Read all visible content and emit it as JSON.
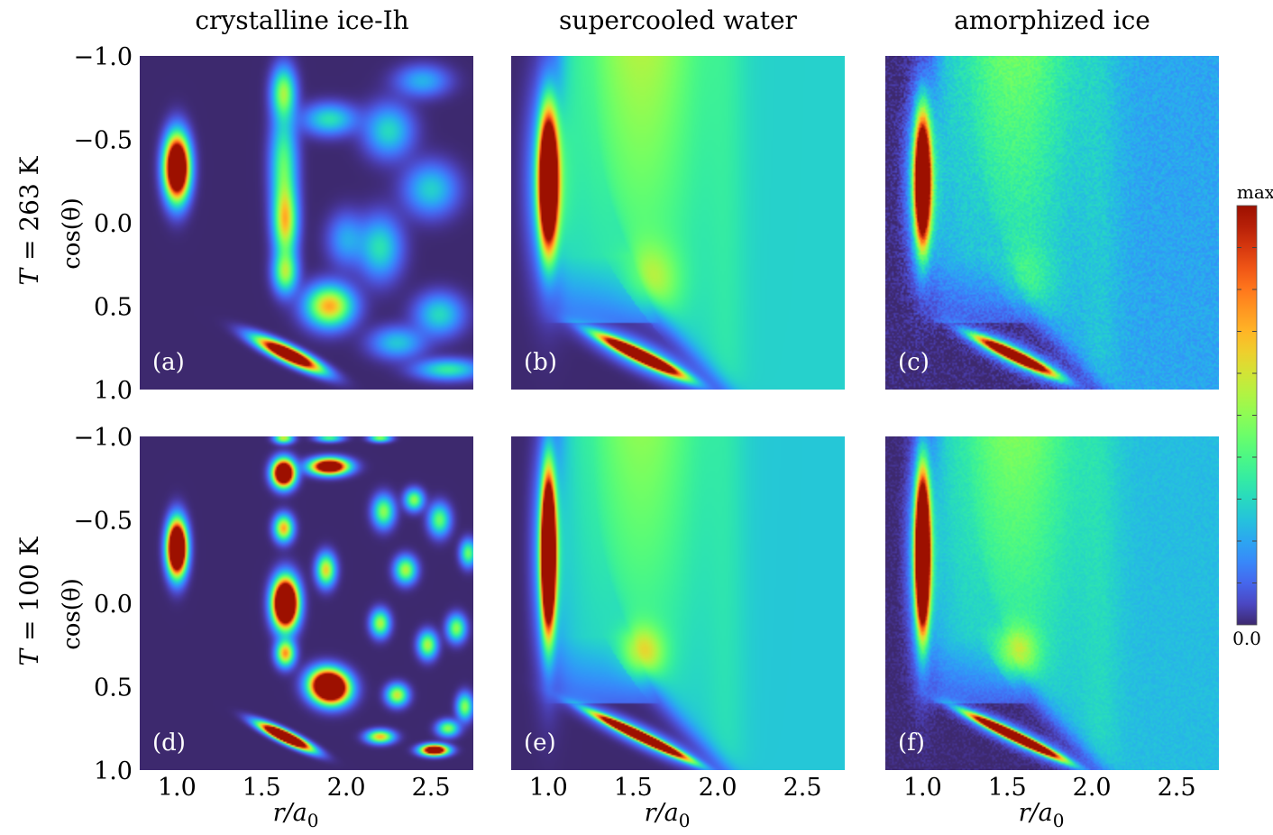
{
  "chart_data": {
    "type": "heatmap",
    "columns": [
      "crystalline ice-Ih",
      "supercooled water",
      "amorphized ice"
    ],
    "rows": [
      {
        "label_var": "T",
        "label_rest": " = 263 K"
      },
      {
        "label_var": "T",
        "label_rest": " = 100 K"
      }
    ],
    "ylabel": "cos(θ)",
    "xlabel_var": "r/a",
    "xlabel_sub": "0",
    "xlim": [
      0.78,
      2.75
    ],
    "ylim": [
      -1.0,
      1.0
    ],
    "xticks": [
      1.0,
      1.5,
      2.0,
      2.5
    ],
    "xtick_labels": [
      "1.0",
      "1.5",
      "2.0",
      "2.5"
    ],
    "yticks": [
      -1.0,
      -0.5,
      0.0,
      0.5,
      1.0
    ],
    "ytick_labels": [
      "−1.0",
      "−0.5",
      "0.0",
      "0.5",
      "1.0"
    ],
    "colorbar": {
      "max_label": "max",
      "min_label": "0.0",
      "colormap": "turbo"
    },
    "background_color": "#30123b",
    "panels": [
      {
        "label": "(a)",
        "row": 0,
        "col": 0,
        "kind": "crystal",
        "temperature": 263,
        "blobs": [
          {
            "r": 1.0,
            "c": -0.33,
            "sr": 0.045,
            "sc": 0.12,
            "rot": 0,
            "amp": 1.9
          },
          {
            "r": 1.66,
            "c": 0.79,
            "sr": 0.13,
            "sc": 0.028,
            "rot": 0.49,
            "amp": 1.7
          },
          {
            "r": 1.63,
            "c": -0.78,
            "sr": 0.045,
            "sc": 0.1,
            "rot": 0,
            "amp": 0.5
          },
          {
            "r": 1.64,
            "c": 0.0,
            "sr": 0.045,
            "sc": 0.14,
            "rot": 0,
            "amp": 0.62
          },
          {
            "r": 1.63,
            "c": -0.35,
            "sr": 0.05,
            "sc": 0.2,
            "rot": 0,
            "amp": 0.42
          },
          {
            "r": 1.64,
            "c": 0.3,
            "sr": 0.045,
            "sc": 0.08,
            "rot": 0,
            "amp": 0.5
          },
          {
            "r": 1.9,
            "c": 0.5,
            "sr": 0.09,
            "sc": 0.08,
            "rot": 0,
            "amp": 0.72
          },
          {
            "r": 1.9,
            "c": -0.62,
            "sr": 0.1,
            "sc": 0.06,
            "rot": 0,
            "amp": 0.32
          },
          {
            "r": 2.25,
            "c": -0.55,
            "sr": 0.09,
            "sc": 0.1,
            "rot": 0,
            "amp": 0.3
          },
          {
            "r": 2.2,
            "c": 0.15,
            "sr": 0.08,
            "sc": 0.12,
            "rot": 0,
            "amp": 0.32
          },
          {
            "r": 2.5,
            "c": -0.2,
            "sr": 0.1,
            "sc": 0.1,
            "rot": 0,
            "amp": 0.28
          },
          {
            "r": 2.55,
            "c": 0.55,
            "sr": 0.09,
            "sc": 0.08,
            "rot": 0,
            "amp": 0.3
          },
          {
            "r": 2.3,
            "c": 0.72,
            "sr": 0.1,
            "sc": 0.06,
            "rot": 0,
            "amp": 0.26
          },
          {
            "r": 2.6,
            "c": 0.88,
            "sr": 0.12,
            "sc": 0.04,
            "rot": 0,
            "amp": 0.35
          },
          {
            "r": 2.45,
            "c": -0.85,
            "sr": 0.1,
            "sc": 0.06,
            "rot": 0,
            "amp": 0.22
          },
          {
            "r": 2.0,
            "c": 0.1,
            "sr": 0.07,
            "sc": 0.1,
            "rot": 0,
            "amp": 0.2
          }
        ]
      },
      {
        "label": "(b)",
        "row": 0,
        "col": 1,
        "kind": "liquid",
        "temperature": 263,
        "peak1": {
          "r": 1.0,
          "c": -0.25,
          "sr": 0.035,
          "sc": 0.25,
          "amp": 2.0
        },
        "peak2": {
          "r": 1.55,
          "c": 0.8,
          "sr": 0.17,
          "sc": 0.022,
          "rot": 0.49,
          "amp": 1.8
        },
        "bands": [
          0.28,
          0.55
        ],
        "broad": [
          {
            "r": 1.6,
            "c": 0.35,
            "sr": 0.12,
            "sc": 0.15,
            "amp": 0.22
          }
        ]
      },
      {
        "label": "(c)",
        "row": 0,
        "col": 2,
        "kind": "liquid",
        "temperature": 263,
        "peak1": {
          "r": 1.0,
          "c": -0.25,
          "sr": 0.03,
          "sc": 0.24,
          "amp": 1.75
        },
        "peak2": {
          "r": 1.55,
          "c": 0.8,
          "sr": 0.16,
          "sc": 0.02,
          "rot": 0.49,
          "amp": 1.6
        },
        "bands": [
          0.2,
          0.46
        ],
        "broad": [
          {
            "r": 1.6,
            "c": 0.35,
            "sr": 0.12,
            "sc": 0.15,
            "amp": 0.12
          }
        ],
        "noise": 0.035
      },
      {
        "label": "(d)",
        "row": 1,
        "col": 0,
        "kind": "crystal",
        "temperature": 100,
        "blobs": [
          {
            "r": 1.0,
            "c": -0.33,
            "sr": 0.035,
            "sc": 0.1,
            "rot": 0,
            "amp": 2.2
          },
          {
            "r": 1.64,
            "c": 0.8,
            "sr": 0.1,
            "sc": 0.02,
            "rot": 0.49,
            "amp": 2.3
          },
          {
            "r": 1.63,
            "c": -0.78,
            "sr": 0.04,
            "sc": 0.05,
            "rot": 0,
            "amp": 1.9
          },
          {
            "r": 1.63,
            "c": -0.45,
            "sr": 0.035,
            "sc": 0.05,
            "rot": 0,
            "amp": 0.72
          },
          {
            "r": 1.64,
            "c": 0.0,
            "sr": 0.045,
            "sc": 0.09,
            "rot": 0,
            "amp": 2.3
          },
          {
            "r": 1.64,
            "c": 0.3,
            "sr": 0.035,
            "sc": 0.05,
            "rot": 0,
            "amp": 0.75
          },
          {
            "r": 1.9,
            "c": 0.5,
            "sr": 0.07,
            "sc": 0.06,
            "rot": 0.3,
            "amp": 2.2
          },
          {
            "r": 1.9,
            "c": -0.82,
            "sr": 0.07,
            "sc": 0.03,
            "rot": 0,
            "amp": 1.6
          },
          {
            "r": 1.88,
            "c": -0.2,
            "sr": 0.035,
            "sc": 0.06,
            "rot": 0,
            "amp": 0.65
          },
          {
            "r": 1.63,
            "c": -0.99,
            "sr": 0.035,
            "sc": 0.02,
            "rot": 0,
            "amp": 0.6
          },
          {
            "r": 1.9,
            "c": -0.99,
            "sr": 0.05,
            "sc": 0.015,
            "rot": 0,
            "amp": 0.4
          },
          {
            "r": 2.22,
            "c": -0.55,
            "sr": 0.04,
            "sc": 0.06,
            "rot": 0,
            "amp": 0.5
          },
          {
            "r": 2.35,
            "c": -0.2,
            "sr": 0.04,
            "sc": 0.05,
            "rot": 0,
            "amp": 0.55
          },
          {
            "r": 2.2,
            "c": 0.12,
            "sr": 0.035,
            "sc": 0.05,
            "rot": 0,
            "amp": 0.55
          },
          {
            "r": 2.48,
            "c": 0.25,
            "sr": 0.035,
            "sc": 0.05,
            "rot": 0,
            "amp": 0.55
          },
          {
            "r": 2.3,
            "c": 0.55,
            "sr": 0.04,
            "sc": 0.04,
            "rot": 0,
            "amp": 0.6
          },
          {
            "r": 2.2,
            "c": 0.8,
            "sr": 0.05,
            "sc": 0.025,
            "rot": 0,
            "amp": 0.7
          },
          {
            "r": 2.52,
            "c": 0.88,
            "sr": 0.05,
            "sc": 0.02,
            "rot": 0,
            "amp": 1.6
          },
          {
            "r": 2.4,
            "c": -0.62,
            "sr": 0.035,
            "sc": 0.04,
            "rot": 0,
            "amp": 0.5
          },
          {
            "r": 2.55,
            "c": -0.5,
            "sr": 0.04,
            "sc": 0.06,
            "rot": 0,
            "amp": 0.45
          },
          {
            "r": 2.65,
            "c": 0.15,
            "sr": 0.035,
            "sc": 0.05,
            "rot": 0,
            "amp": 0.5
          },
          {
            "r": 2.7,
            "c": 0.62,
            "sr": 0.03,
            "sc": 0.05,
            "rot": 0,
            "amp": 0.5
          },
          {
            "r": 2.72,
            "c": -0.3,
            "sr": 0.03,
            "sc": 0.05,
            "rot": 0,
            "amp": 0.45
          },
          {
            "r": 2.2,
            "c": -0.99,
            "sr": 0.04,
            "sc": 0.015,
            "rot": 0,
            "amp": 0.5
          },
          {
            "r": 2.6,
            "c": 0.75,
            "sr": 0.04,
            "sc": 0.03,
            "rot": 0,
            "amp": 0.5
          }
        ]
      },
      {
        "label": "(e)",
        "row": 1,
        "col": 1,
        "kind": "liquid",
        "temperature": 100,
        "peak1": {
          "r": 1.0,
          "c": -0.3,
          "sr": 0.026,
          "sc": 0.28,
          "amp": 2.3
        },
        "peak2": {
          "r": 1.55,
          "c": 0.8,
          "sr": 0.18,
          "sc": 0.016,
          "rot": 0.49,
          "amp": 2.2
        },
        "bands": [
          0.26,
          0.5
        ],
        "broad": [
          {
            "r": 1.55,
            "c": 0.3,
            "sr": 0.09,
            "sc": 0.11,
            "amp": 0.34
          }
        ]
      },
      {
        "label": "(f)",
        "row": 1,
        "col": 2,
        "kind": "liquid",
        "temperature": 100,
        "peak1": {
          "r": 1.0,
          "c": -0.3,
          "sr": 0.026,
          "sc": 0.28,
          "amp": 2.3
        },
        "peak2": {
          "r": 1.55,
          "c": 0.8,
          "sr": 0.18,
          "sc": 0.016,
          "rot": 0.49,
          "amp": 2.2
        },
        "bands": [
          0.24,
          0.48
        ],
        "broad": [
          {
            "r": 1.55,
            "c": 0.3,
            "sr": 0.09,
            "sc": 0.11,
            "amp": 0.3
          }
        ],
        "noise": 0.02
      }
    ]
  }
}
